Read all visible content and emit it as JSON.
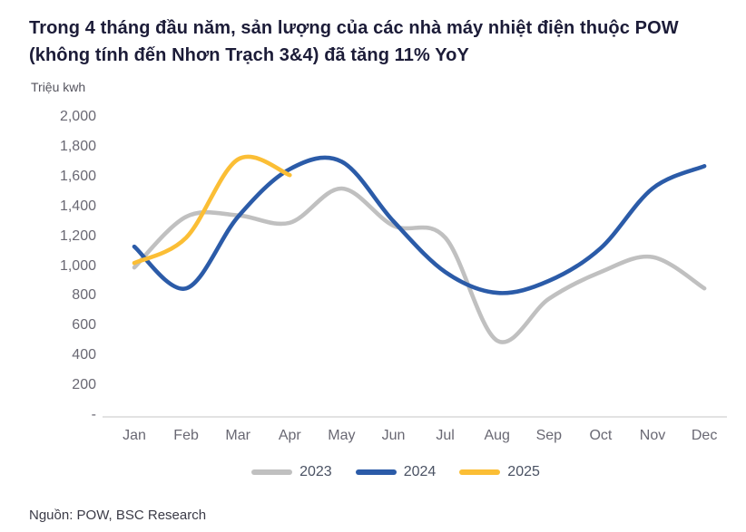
{
  "title": {
    "line1": "Trong 4 tháng đầu năm, sản lượng của các nhà máy nhiệt điện thuộc POW",
    "line2": "(không tính đến Nhơn Trạch 3&4) đã tăng 11% YoY"
  },
  "y_axis_unit": "Triệu kwh",
  "source": "Nguồn: POW, BSC Research",
  "colors": {
    "series_2023": "#c0c0c0",
    "series_2024": "#2b5ba8",
    "series_2025": "#fbbe35",
    "axis_line": "#d8d8d8",
    "title_text": "#1c1c38",
    "tick_text": "#696873"
  },
  "chart_data": {
    "type": "line",
    "title": "Trong 4 tháng đầu năm, sản lượng của các nhà máy nhiệt điện thuộc POW (không tính đến Nhơn Trạch 3&4) đã tăng 11% YoY",
    "xlabel": "",
    "ylabel": "Triệu kwh",
    "smooth": true,
    "grid": false,
    "legend_position": "bottom",
    "ylim": [
      0,
      2000
    ],
    "y_ticks": [
      {
        "label": "2,000",
        "value": 2000
      },
      {
        "label": "1,800",
        "value": 1800
      },
      {
        "label": "1,600",
        "value": 1600
      },
      {
        "label": "1,400",
        "value": 1400
      },
      {
        "label": "1,200",
        "value": 1200
      },
      {
        "label": "1,000",
        "value": 1000
      },
      {
        "label": "800",
        "value": 800
      },
      {
        "label": "600",
        "value": 600
      },
      {
        "label": "400",
        "value": 400
      },
      {
        "label": "200",
        "value": 200
      },
      {
        "label": "-",
        "value": 0
      }
    ],
    "categories": [
      "Jan",
      "Feb",
      "Mar",
      "Apr",
      "May",
      "Jun",
      "Jul",
      "Aug",
      "Sep",
      "Oct",
      "Nov",
      "Dec"
    ],
    "series": [
      {
        "name": "2023",
        "color": "#c0c0c0",
        "values": [
          990,
          1330,
          1340,
          1290,
          1520,
          1270,
          1190,
          500,
          780,
          960,
          1060,
          850
        ]
      },
      {
        "name": "2024",
        "color": "#2b5ba8",
        "values": [
          1130,
          850,
          1330,
          1650,
          1700,
          1300,
          960,
          820,
          900,
          1120,
          1520,
          1670
        ]
      },
      {
        "name": "2025",
        "color": "#fbbe35",
        "values": [
          1020,
          1190,
          1715,
          1610
        ]
      }
    ]
  },
  "legend": {
    "items": [
      {
        "label": "2023",
        "color": "#c0c0c0"
      },
      {
        "label": "2024",
        "color": "#2b5ba8"
      },
      {
        "label": "2025",
        "color": "#fbbe35"
      }
    ]
  }
}
